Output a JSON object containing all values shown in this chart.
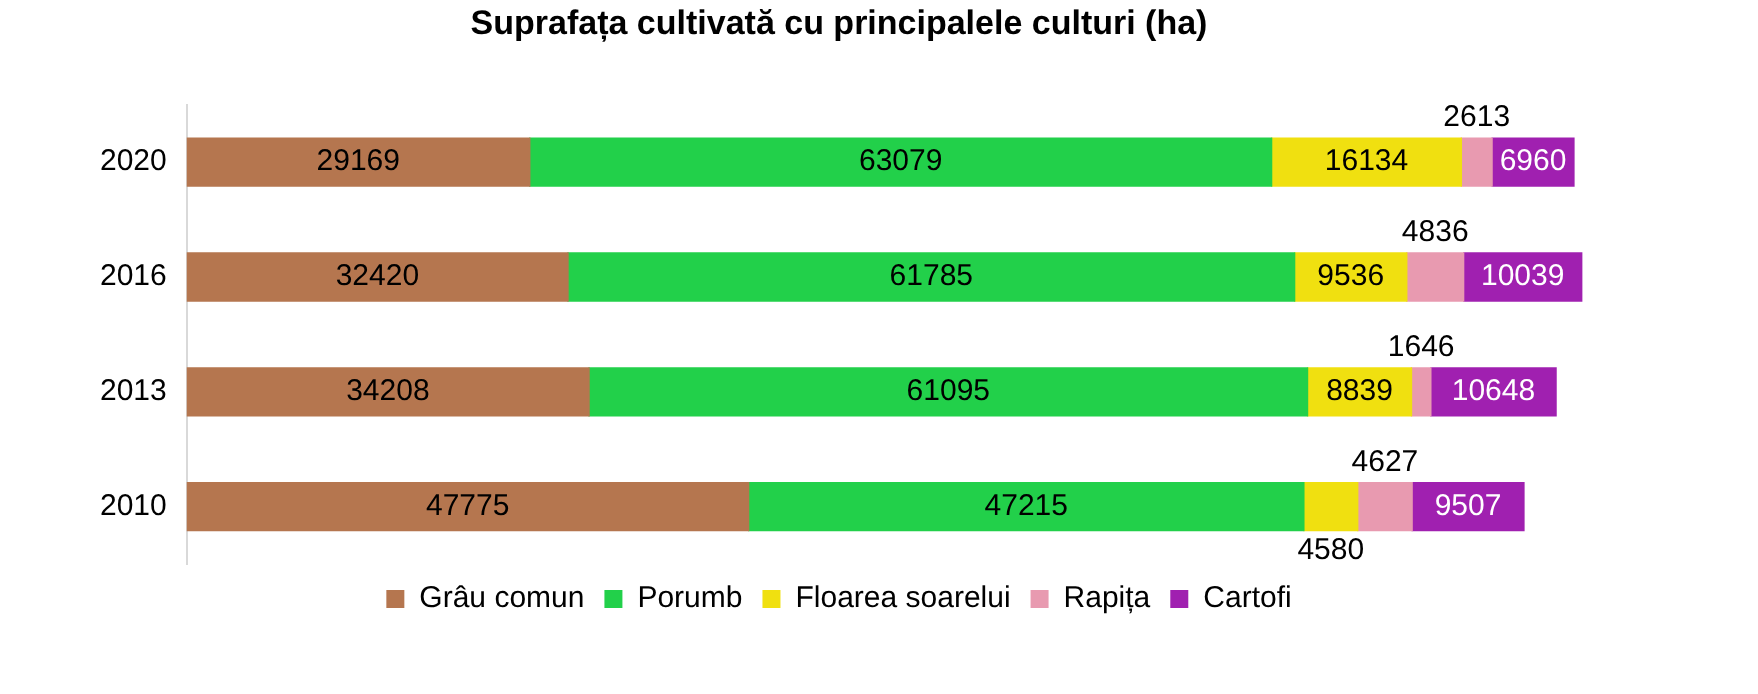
{
  "chart_data": {
    "type": "bar",
    "orientation": "horizontal",
    "stacked": true,
    "title": "Suprafața cultivată cu principalele culturi (ha)",
    "categories": [
      "2020",
      "2016",
      "2013",
      "2010"
    ],
    "series": [
      {
        "name": "Grâu comun",
        "color": "#b5764f",
        "values": [
          29169,
          32420,
          34208,
          47775
        ]
      },
      {
        "name": "Porumb",
        "color": "#22d04a",
        "values": [
          63079,
          61785,
          61095,
          47215
        ]
      },
      {
        "name": "Floarea soarelui",
        "color": "#f0e010",
        "values": [
          16134,
          9536,
          8839,
          4580
        ]
      },
      {
        "name": "Rapița",
        "color": "#e89ab0",
        "values": [
          2613,
          4836,
          1646,
          4627
        ]
      },
      {
        "name": "Cartofi",
        "color": "#a020b0",
        "values": [
          6960,
          10039,
          10648,
          9507
        ]
      }
    ],
    "tick_labels": "y",
    "data_labels": true,
    "legend": "bottom"
  }
}
